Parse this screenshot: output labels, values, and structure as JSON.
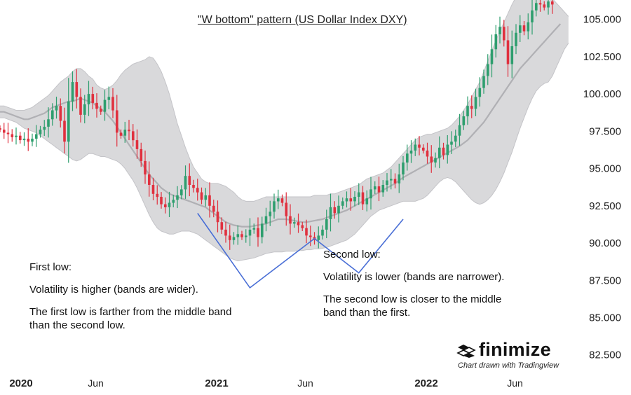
{
  "chart_data": {
    "type": "candlestick",
    "title": "\"W bottom\" pattern (US Dollar Index DXY)",
    "y_axis": {
      "ticks": [
        105.0,
        102.5,
        100.0,
        97.5,
        95.0,
        92.5,
        90.0,
        87.5,
        85.0,
        82.5
      ],
      "tick_labels": [
        "105.000",
        "102.500",
        "100.000",
        "97.500",
        "95.000",
        "92.500",
        "90.000",
        "87.500",
        "85.000",
        "82.500"
      ],
      "ylim": [
        81.5,
        106.3
      ]
    },
    "x_axis": {
      "ticks": [
        {
          "label": "2020",
          "x": 0,
          "major": true
        },
        {
          "label": "Jun",
          "x": 22,
          "major": false
        },
        {
          "label": "2021",
          "x": 52,
          "major": true
        },
        {
          "label": "Jun",
          "x": 74,
          "major": false
        },
        {
          "label": "2022",
          "x": 104,
          "major": true
        },
        {
          "label": "Jun",
          "x": 126,
          "major": false
        }
      ],
      "xlim": [
        0,
        140
      ]
    },
    "close": [
      97.6,
      97.4,
      97.3,
      97.1,
      97.2,
      96.9,
      97.0,
      96.8,
      97.0,
      97.3,
      97.6,
      97.8,
      98.3,
      98.9,
      99.2,
      98.2,
      96.8,
      99.5,
      100.8,
      99.8,
      98.6,
      99.3,
      100.0,
      99.4,
      99.0,
      98.8,
      99.6,
      99.8,
      98.9,
      97.4,
      97.2,
      97.6,
      97.5,
      96.9,
      96.3,
      95.5,
      94.6,
      93.9,
      93.3,
      93.1,
      92.6,
      92.4,
      92.7,
      92.9,
      93.2,
      93.6,
      94.5,
      93.9,
      93.7,
      93.4,
      92.9,
      93.2,
      92.5,
      92.1,
      91.4,
      90.9,
      90.5,
      90.2,
      90.4,
      90.6,
      90.4,
      90.5,
      90.9,
      91.0,
      90.4,
      91.3,
      91.8,
      92.1,
      92.8,
      93.0,
      92.7,
      91.8,
      91.3,
      91.4,
      91.2,
      91.0,
      90.5,
      90.4,
      90.2,
      90.5,
      90.9,
      91.6,
      92.4,
      92.0,
      92.5,
      92.8,
      93.0,
      92.8,
      93.1,
      93.4,
      92.6,
      93.0,
      93.6,
      93.8,
      93.4,
      93.9,
      94.2,
      94.3,
      94.0,
      94.6,
      95.4,
      96.0,
      96.2,
      96.6,
      96.4,
      96.2,
      95.8,
      95.4,
      95.7,
      96.4,
      95.9,
      96.6,
      96.8,
      97.2,
      97.9,
      98.5,
      99.2,
      99.0,
      99.8,
      100.4,
      101.2,
      102.0,
      103.0,
      104.0,
      104.5,
      103.6,
      102.0,
      103.2,
      104.1,
      104.6,
      104.2,
      104.8,
      105.6,
      106.1,
      106.0,
      105.8,
      106.2,
      106.0
    ],
    "bollinger": {
      "middle": [
        98.8,
        98.8,
        98.7,
        98.6,
        98.5,
        98.4,
        98.3,
        98.3,
        98.4,
        98.5,
        98.6,
        98.7,
        98.9,
        99.1,
        99.2,
        99.3,
        99.4,
        99.5,
        99.5,
        99.6,
        99.7,
        99.6,
        99.5,
        99.4,
        99.2,
        99.0,
        98.8,
        98.5,
        98.2,
        97.8,
        97.4,
        97.0,
        96.6,
        96.2,
        95.8,
        95.4,
        95.0,
        94.6,
        94.3,
        94.0,
        93.7,
        93.5,
        93.3,
        93.2,
        93.1,
        93.0,
        92.9,
        92.8,
        92.7,
        92.6,
        92.5,
        92.4,
        92.2,
        92.0,
        91.8,
        91.6,
        91.4,
        91.3,
        91.2,
        91.15,
        91.1,
        91.1,
        91.1,
        91.15,
        91.2,
        91.25,
        91.3,
        91.4,
        91.5,
        91.6,
        91.6,
        91.6,
        91.55,
        91.5,
        91.45,
        91.4,
        91.4,
        91.45,
        91.5,
        91.55,
        91.6,
        91.7,
        91.8,
        91.9,
        92.0,
        92.1,
        92.2,
        92.35,
        92.5,
        92.65,
        92.8,
        92.95,
        93.1,
        93.25,
        93.4,
        93.55,
        93.7,
        93.85,
        94.0,
        94.2,
        94.4,
        94.55,
        94.7,
        94.85,
        95.0,
        95.15,
        95.3,
        95.45,
        95.6,
        95.75,
        95.9,
        96.05,
        96.2,
        96.35,
        96.5,
        96.7,
        96.9,
        97.2,
        97.5,
        97.8,
        98.1,
        98.5,
        98.9,
        99.3,
        99.7,
        100.1,
        100.5,
        100.9,
        101.3,
        101.7,
        102.0,
        102.3,
        102.6,
        102.9,
        103.2,
        103.5,
        103.8,
        104.1,
        104.4,
        104.7
      ],
      "upper": [
        99.2,
        99.2,
        99.1,
        99.0,
        98.9,
        98.9,
        98.9,
        99.0,
        99.1,
        99.3,
        99.5,
        99.7,
        99.9,
        100.2,
        100.5,
        100.8,
        101.0,
        101.2,
        101.5,
        101.7,
        101.7,
        101.5,
        101.2,
        101.0,
        100.6,
        100.4,
        100.3,
        100.4,
        100.6,
        100.9,
        101.3,
        101.6,
        101.8,
        102.0,
        102.1,
        102.2,
        102.3,
        102.5,
        102.4,
        102.0,
        101.5,
        100.8,
        100.0,
        99.0,
        98.0,
        97.2,
        96.4,
        95.7,
        95.1,
        94.7,
        94.3,
        94.1,
        94.0,
        94.0,
        94.0,
        93.9,
        93.8,
        93.6,
        93.4,
        93.1,
        92.9,
        92.8,
        92.8,
        92.8,
        92.9,
        93.0,
        93.1,
        93.1,
        93.1,
        93.1,
        93.1,
        93.1,
        93.1,
        93.1,
        93.1,
        93.1,
        93.1,
        93.1,
        93.2,
        93.2,
        93.2,
        93.2,
        93.3,
        93.3,
        93.4,
        93.5,
        93.6,
        93.7,
        93.8,
        93.9,
        94.1,
        94.3,
        94.4,
        94.5,
        94.6,
        94.7,
        94.9,
        95.1,
        95.4,
        95.7,
        96.0,
        96.3,
        96.6,
        96.9,
        97.1,
        97.2,
        97.3,
        97.3,
        97.4,
        97.5,
        97.6,
        97.7,
        97.9,
        98.2,
        98.5,
        98.9,
        99.3,
        99.8,
        100.3,
        100.8,
        101.5,
        102.2,
        102.9,
        103.6,
        104.2,
        104.8,
        105.4,
        106.0,
        106.5,
        107.0,
        107.3,
        107.5,
        107.5,
        107.4,
        107.3,
        107.0,
        106.7,
        106.4,
        106.1,
        105.8,
        105.5,
        105.2
      ],
      "lower": [
        98.4,
        98.4,
        98.3,
        98.2,
        98.1,
        97.9,
        97.7,
        97.6,
        97.5,
        97.4,
        97.2,
        97.0,
        96.8,
        96.6,
        96.4,
        96.2,
        96.0,
        95.8,
        95.6,
        95.5,
        95.6,
        95.8,
        96.0,
        96.0,
        95.9,
        95.8,
        95.8,
        95.7,
        95.6,
        95.5,
        95.3,
        95.0,
        94.6,
        94.2,
        93.7,
        93.1,
        92.5,
        91.9,
        91.4,
        91.0,
        90.8,
        90.7,
        90.6,
        90.6,
        90.7,
        90.8,
        90.8,
        90.8,
        90.7,
        90.6,
        90.4,
        90.2,
        90.0,
        89.8,
        89.6,
        89.4,
        89.2,
        89.0,
        88.9,
        88.8,
        88.85,
        88.9,
        88.95,
        89.0,
        89.1,
        89.2,
        89.3,
        89.35,
        89.4,
        89.4,
        89.4,
        89.45,
        89.45,
        89.45,
        89.5,
        89.5,
        89.55,
        89.55,
        89.6,
        89.6,
        89.65,
        89.7,
        89.8,
        89.9,
        90.0,
        90.1,
        90.2,
        90.4,
        90.6,
        90.9,
        91.2,
        91.5,
        91.8,
        92.0,
        92.2,
        92.3,
        92.4,
        92.5,
        92.6,
        92.7,
        92.8,
        92.8,
        92.8,
        92.8,
        92.9,
        93.0,
        93.2,
        93.5,
        93.8,
        94.1,
        94.3,
        94.4,
        94.3,
        94.1,
        93.8,
        93.5,
        93.2,
        92.9,
        92.7,
        92.6,
        92.7,
        92.9,
        93.2,
        93.6,
        94.1,
        94.7,
        95.4,
        96.1,
        96.9,
        97.7,
        98.4,
        99.1,
        99.7,
        100.2,
        100.5,
        100.7,
        100.8,
        101.2,
        101.8,
        102.4,
        103.0,
        103.4
      ],
      "fill_color": "#d9d9db",
      "middle_color": "#b0b0b4"
    },
    "colors": {
      "up": "#2e9e6e",
      "down": "#e0303e"
    },
    "w_pattern": {
      "color": "#4a6fd6",
      "points": [
        [
          49,
          92.0
        ],
        [
          62,
          87.0
        ],
        [
          78,
          90.3
        ],
        [
          89,
          88.0
        ],
        [
          100,
          91.6
        ]
      ]
    }
  },
  "annotations": {
    "first_low": {
      "heading": "First low:",
      "line1": "Volatility is higher (bands are wider).",
      "line2": "The first low is farther from the middle band than the second low."
    },
    "second_low": {
      "heading": "Second low:",
      "line1": "Volatility is lower (bands are narrower).",
      "line2": "The second low is closer to the middle band than the first."
    }
  },
  "logo": {
    "wordmark": "finimize",
    "subtitle": "Chart drawn with Tradingview"
  }
}
